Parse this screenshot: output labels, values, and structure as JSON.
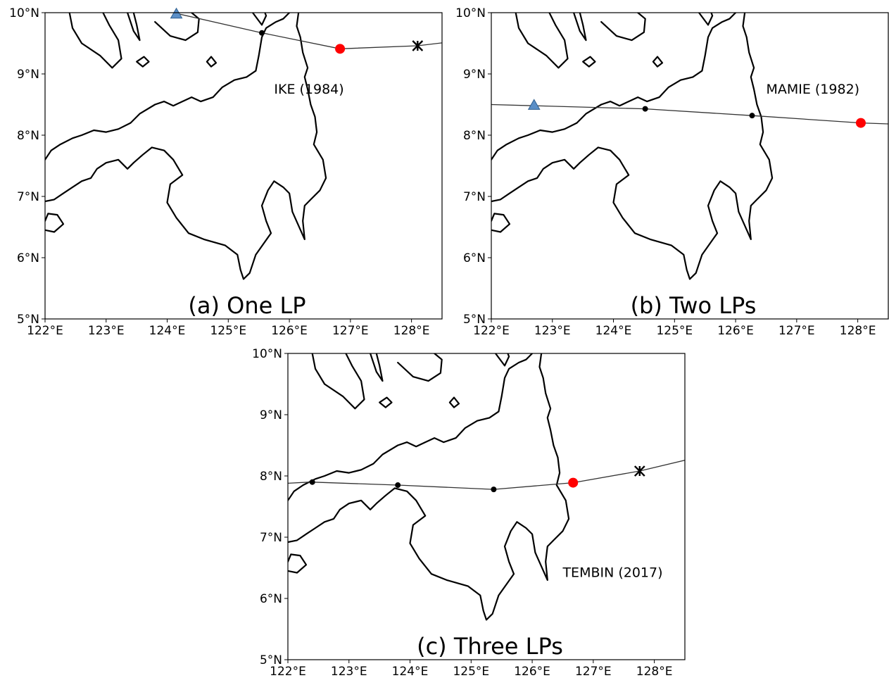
{
  "map": {
    "lon_range": [
      122,
      128.5
    ],
    "lat_range": [
      5,
      10
    ],
    "x_ticks": [
      {
        "value": 122,
        "label": "122°E"
      },
      {
        "value": 123,
        "label": "123°E"
      },
      {
        "value": 124,
        "label": "124°E"
      },
      {
        "value": 125,
        "label": "125°E"
      },
      {
        "value": 126,
        "label": "126°E"
      },
      {
        "value": 127,
        "label": "127°E"
      },
      {
        "value": 128,
        "label": "128°E"
      }
    ],
    "y_ticks": [
      {
        "value": 5,
        "label": "5°N"
      },
      {
        "value": 6,
        "label": "6°N"
      },
      {
        "value": 7,
        "label": "7°N"
      },
      {
        "value": 8,
        "label": "8°N"
      },
      {
        "value": 9,
        "label": "9°N"
      },
      {
        "value": 10,
        "label": "10°N"
      }
    ],
    "colors": {
      "landfall_point": "#ff0000",
      "exit_point": "#5b8fc7",
      "track_line": "#333333",
      "coastline": "#000000"
    }
  },
  "panels": [
    {
      "id": "a",
      "panel_label": "(a) One LP",
      "storm_label": "IKE (1984)",
      "label_pos": {
        "lon": 125.75,
        "lat": 8.68
      },
      "track": [
        [
          124.1,
          10.0
        ],
        [
          125.5,
          9.68
        ],
        [
          126.83,
          9.41
        ],
        [
          128.1,
          9.46
        ],
        [
          128.6,
          9.52
        ]
      ],
      "markers": [
        {
          "type": "triangle",
          "lon": 124.15,
          "lat": 9.98
        },
        {
          "type": "dot",
          "lon": 125.55,
          "lat": 9.67
        },
        {
          "type": "landfall",
          "lon": 126.83,
          "lat": 9.41
        },
        {
          "type": "star",
          "lon": 128.1,
          "lat": 9.46
        }
      ]
    },
    {
      "id": "b",
      "panel_label": "(b) Two LPs",
      "storm_label": "MAMIE (1982)",
      "label_pos": {
        "lon": 126.5,
        "lat": 8.68
      },
      "track": [
        [
          122.0,
          8.5
        ],
        [
          124.52,
          8.43
        ],
        [
          126.27,
          8.32
        ],
        [
          128.05,
          8.2
        ],
        [
          128.6,
          8.18
        ]
      ],
      "markers": [
        {
          "type": "triangle",
          "lon": 122.7,
          "lat": 8.49
        },
        {
          "type": "dot",
          "lon": 124.52,
          "lat": 8.43
        },
        {
          "type": "dot",
          "lon": 126.27,
          "lat": 8.32
        },
        {
          "type": "landfall",
          "lon": 128.05,
          "lat": 8.2
        }
      ]
    },
    {
      "id": "c",
      "panel_label": "(c) Three LPs",
      "storm_label": "TEMBIN (2017)",
      "label_pos": {
        "lon": 126.5,
        "lat": 6.35
      },
      "track": [
        [
          122.0,
          7.88
        ],
        [
          122.37,
          7.9
        ],
        [
          123.8,
          7.85
        ],
        [
          125.37,
          7.78
        ],
        [
          126.67,
          7.89
        ],
        [
          127.76,
          8.08
        ],
        [
          128.6,
          8.28
        ]
      ],
      "markers": [
        {
          "type": "dot",
          "lon": 122.4,
          "lat": 7.9
        },
        {
          "type": "dot",
          "lon": 123.8,
          "lat": 7.85
        },
        {
          "type": "dot",
          "lon": 125.37,
          "lat": 7.78
        },
        {
          "type": "landfall",
          "lon": 126.67,
          "lat": 7.89
        },
        {
          "type": "star",
          "lon": 127.76,
          "lat": 8.08
        }
      ]
    }
  ],
  "coastlines": {
    "mindanao": [
      [
        126.15,
        10.0
      ],
      [
        126.12,
        9.78
      ],
      [
        126.18,
        9.6
      ],
      [
        126.22,
        9.35
      ],
      [
        126.3,
        9.1
      ],
      [
        126.25,
        8.95
      ],
      [
        126.3,
        8.75
      ],
      [
        126.35,
        8.5
      ],
      [
        126.42,
        8.3
      ],
      [
        126.45,
        8.05
      ],
      [
        126.4,
        7.85
      ],
      [
        126.55,
        7.6
      ],
      [
        126.6,
        7.3
      ],
      [
        126.5,
        7.1
      ],
      [
        126.35,
        6.95
      ],
      [
        126.25,
        6.85
      ],
      [
        126.22,
        6.6
      ],
      [
        126.25,
        6.3
      ],
      [
        126.05,
        6.75
      ],
      [
        126.0,
        7.05
      ],
      [
        125.9,
        7.15
      ],
      [
        125.75,
        7.25
      ],
      [
        125.65,
        7.1
      ],
      [
        125.55,
        6.85
      ],
      [
        125.62,
        6.6
      ],
      [
        125.7,
        6.4
      ],
      [
        125.45,
        6.05
      ],
      [
        125.35,
        5.75
      ],
      [
        125.25,
        5.65
      ],
      [
        125.2,
        5.8
      ],
      [
        125.15,
        6.05
      ],
      [
        124.95,
        6.2
      ],
      [
        124.6,
        6.3
      ],
      [
        124.35,
        6.4
      ],
      [
        124.15,
        6.65
      ],
      [
        124.0,
        6.9
      ],
      [
        124.05,
        7.2
      ],
      [
        124.25,
        7.35
      ],
      [
        124.1,
        7.6
      ],
      [
        123.95,
        7.75
      ],
      [
        123.75,
        7.8
      ],
      [
        123.6,
        7.68
      ],
      [
        123.45,
        7.55
      ],
      [
        123.35,
        7.45
      ],
      [
        123.2,
        7.6
      ],
      [
        123.0,
        7.55
      ],
      [
        122.85,
        7.45
      ],
      [
        122.75,
        7.3
      ],
      [
        122.6,
        7.25
      ],
      [
        122.45,
        7.15
      ],
      [
        122.3,
        7.05
      ],
      [
        122.15,
        6.95
      ],
      [
        122.0,
        6.92
      ]
    ],
    "mindanao_north": [
      [
        122.0,
        7.6
      ],
      [
        122.1,
        7.75
      ],
      [
        122.25,
        7.85
      ],
      [
        122.45,
        7.95
      ],
      [
        122.6,
        8.0
      ],
      [
        122.8,
        8.08
      ],
      [
        123.0,
        8.05
      ],
      [
        123.2,
        8.1
      ],
      [
        123.4,
        8.2
      ],
      [
        123.55,
        8.35
      ],
      [
        123.8,
        8.5
      ],
      [
        123.95,
        8.55
      ],
      [
        124.1,
        8.48
      ],
      [
        124.25,
        8.55
      ],
      [
        124.4,
        8.62
      ],
      [
        124.55,
        8.55
      ],
      [
        124.75,
        8.62
      ],
      [
        124.9,
        8.78
      ],
      [
        125.1,
        8.9
      ],
      [
        125.3,
        8.95
      ],
      [
        125.45,
        9.05
      ],
      [
        125.5,
        9.3
      ],
      [
        125.55,
        9.6
      ],
      [
        125.62,
        9.75
      ],
      [
        125.78,
        9.85
      ],
      [
        125.9,
        9.9
      ],
      [
        126.0,
        10.0
      ]
    ],
    "bohol": [
      [
        123.8,
        9.85
      ],
      [
        124.05,
        9.62
      ],
      [
        124.3,
        9.55
      ],
      [
        124.5,
        9.68
      ],
      [
        124.52,
        9.9
      ],
      [
        124.4,
        10.0
      ]
    ],
    "cebu": [
      [
        123.35,
        10.0
      ],
      [
        123.45,
        9.7
      ],
      [
        123.55,
        9.55
      ],
      [
        123.5,
        9.8
      ],
      [
        123.45,
        10.0
      ]
    ],
    "negros": [
      [
        122.4,
        10.0
      ],
      [
        122.45,
        9.75
      ],
      [
        122.6,
        9.5
      ],
      [
        122.9,
        9.3
      ],
      [
        123.1,
        9.1
      ],
      [
        123.25,
        9.25
      ],
      [
        123.2,
        9.55
      ],
      [
        123.05,
        9.8
      ],
      [
        122.95,
        10.0
      ]
    ],
    "siquijor": [
      [
        123.5,
        9.2
      ],
      [
        123.6,
        9.12
      ],
      [
        123.7,
        9.2
      ],
      [
        123.62,
        9.28
      ],
      [
        123.5,
        9.2
      ]
    ],
    "camiguin": [
      [
        124.65,
        9.2
      ],
      [
        124.72,
        9.12
      ],
      [
        124.8,
        9.18
      ],
      [
        124.72,
        9.28
      ],
      [
        124.65,
        9.2
      ]
    ],
    "basilan": [
      [
        122.0,
        6.45
      ],
      [
        122.15,
        6.42
      ],
      [
        122.3,
        6.55
      ],
      [
        122.2,
        6.7
      ],
      [
        122.05,
        6.72
      ],
      [
        122.0,
        6.6
      ]
    ],
    "dinagat": [
      [
        125.4,
        10.0
      ],
      [
        125.55,
        9.8
      ],
      [
        125.62,
        9.95
      ],
      [
        125.6,
        10.0
      ]
    ]
  }
}
